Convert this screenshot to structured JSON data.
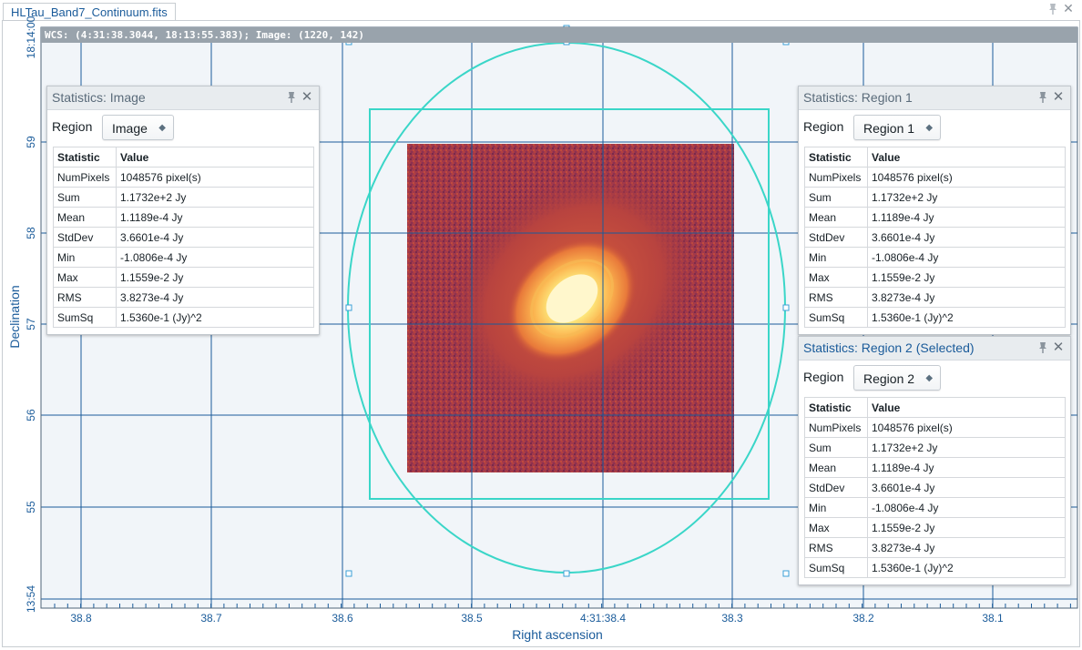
{
  "tab": {
    "title": "HLTau_Band7_Continuum.fits"
  },
  "wcs_info": "WCS: (4:31:38.3044, 18:13:55.383); Image: (1220, 142)",
  "axes": {
    "xlabel": "Right ascension",
    "ylabel": "Declination",
    "x_ticks": [
      "38.8",
      "38.7",
      "38.6",
      "38.5",
      "4:31:38.4",
      "38.3",
      "38.2",
      "38.1"
    ],
    "y_ticks": [
      "18:14:00",
      "59",
      "58",
      "57",
      "56",
      "55",
      "13:54"
    ]
  },
  "colors": {
    "accent": "#1a5b9a",
    "region": "#3ad6c8",
    "wcs_bar": "#99a3ac"
  },
  "widgets": [
    {
      "title": "Statistics: Image",
      "region_label": "Region",
      "region_value": "Image",
      "header": [
        "Statistic",
        "Value"
      ],
      "rows": [
        [
          "NumPixels",
          "1048576 pixel(s)"
        ],
        [
          "Sum",
          "1.1732e+2 Jy"
        ],
        [
          "Mean",
          "1.1189e-4 Jy"
        ],
        [
          "StdDev",
          "3.6601e-4 Jy"
        ],
        [
          "Min",
          "-1.0806e-4 Jy"
        ],
        [
          "Max",
          "1.1559e-2 Jy"
        ],
        [
          "RMS",
          "3.8273e-4 Jy"
        ],
        [
          "SumSq",
          "1.5360e-1 (Jy)^2"
        ]
      ]
    },
    {
      "title": "Statistics: Region 1",
      "region_label": "Region",
      "region_value": "Region 1",
      "header": [
        "Statistic",
        "Value"
      ],
      "rows": [
        [
          "NumPixels",
          "1048576 pixel(s)"
        ],
        [
          "Sum",
          "1.1732e+2 Jy"
        ],
        [
          "Mean",
          "1.1189e-4 Jy"
        ],
        [
          "StdDev",
          "3.6601e-4 Jy"
        ],
        [
          "Min",
          "-1.0806e-4 Jy"
        ],
        [
          "Max",
          "1.1559e-2 Jy"
        ],
        [
          "RMS",
          "3.8273e-4 Jy"
        ],
        [
          "SumSq",
          "1.5360e-1 (Jy)^2"
        ]
      ]
    },
    {
      "title": "Statistics: Region 2 (Selected)",
      "region_label": "Region",
      "region_value": "Region 2",
      "header": [
        "Statistic",
        "Value"
      ],
      "rows": [
        [
          "NumPixels",
          "1048576 pixel(s)"
        ],
        [
          "Sum",
          "1.1732e+2 Jy"
        ],
        [
          "Mean",
          "1.1189e-4 Jy"
        ],
        [
          "StdDev",
          "3.6601e-4 Jy"
        ],
        [
          "Min",
          "-1.0806e-4 Jy"
        ],
        [
          "Max",
          "1.1559e-2 Jy"
        ],
        [
          "RMS",
          "3.8273e-4 Jy"
        ],
        [
          "SumSq",
          "1.5360e-1 (Jy)^2"
        ]
      ]
    }
  ]
}
